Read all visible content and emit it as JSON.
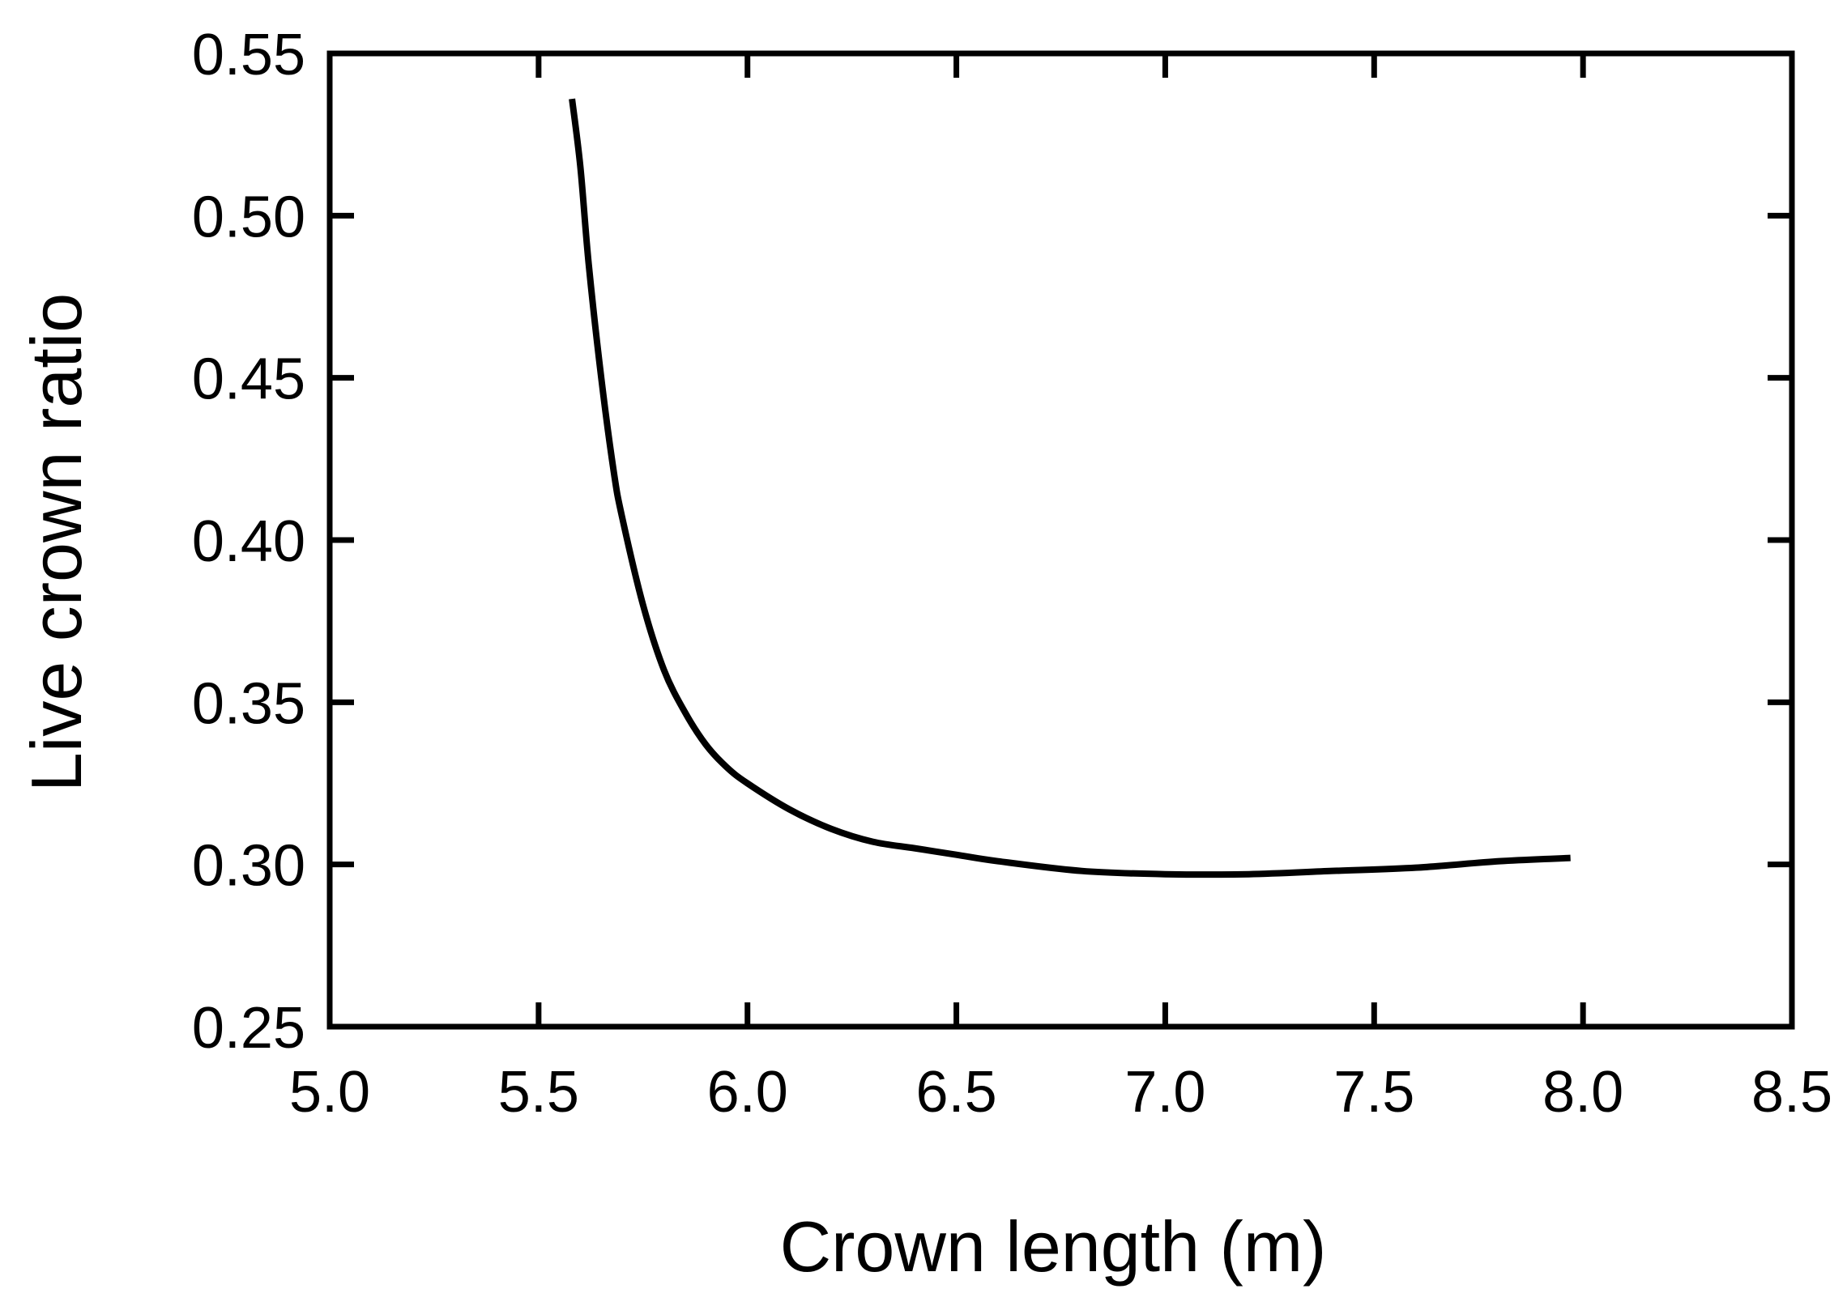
{
  "chart_data": {
    "type": "line",
    "title": "",
    "xlabel": "Crown length (m)",
    "ylabel": "Live crown ratio",
    "xlim": [
      5.0,
      8.5
    ],
    "ylim": [
      0.25,
      0.55
    ],
    "x_ticks": [
      "5.0",
      "5.5",
      "6.0",
      "6.5",
      "7.0",
      "7.5",
      "8.0",
      "8.5"
    ],
    "y_ticks": [
      "0.25",
      "0.30",
      "0.35",
      "0.40",
      "0.45",
      "0.50",
      "0.55"
    ],
    "grid": false,
    "legend": "none",
    "line_color": "#000000",
    "series": [
      {
        "x": [
          5.58,
          5.6,
          5.62,
          5.65,
          5.68,
          5.7,
          5.75,
          5.8,
          5.85,
          5.9,
          5.95,
          6.0,
          6.1,
          6.2,
          6.3,
          6.4,
          6.5,
          6.6,
          6.8,
          7.0,
          7.2,
          7.4,
          7.6,
          7.8,
          7.97
        ],
        "y": [
          0.536,
          0.515,
          0.485,
          0.45,
          0.421,
          0.407,
          0.38,
          0.36,
          0.347,
          0.337,
          0.33,
          0.325,
          0.317,
          0.311,
          0.307,
          0.305,
          0.303,
          0.301,
          0.298,
          0.297,
          0.297,
          0.298,
          0.299,
          0.301,
          0.302
        ]
      }
    ]
  }
}
